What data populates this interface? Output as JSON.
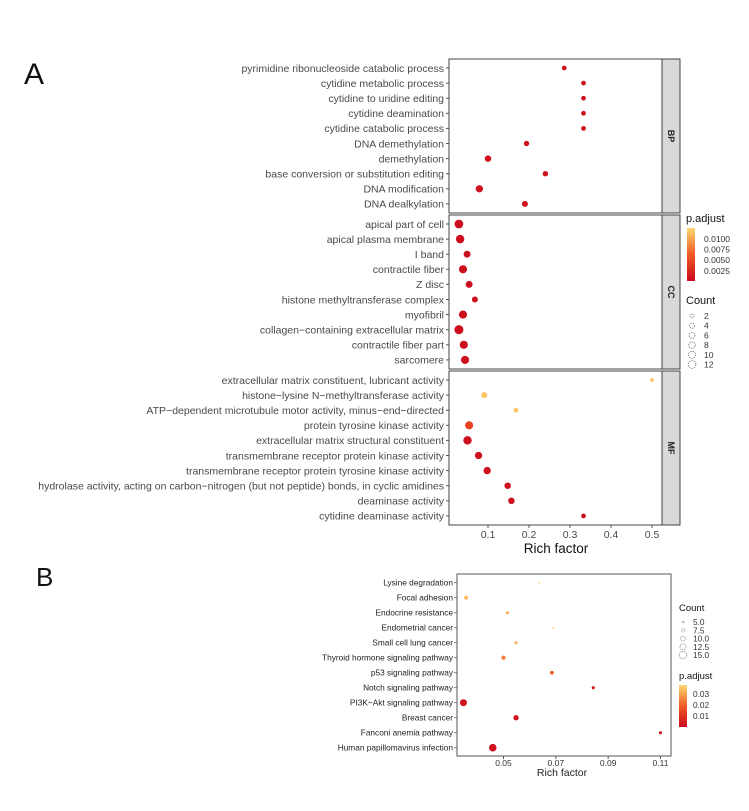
{
  "chart_data": [
    {
      "panel_label": "A",
      "type": "scatter",
      "subtype": "dot-plot (faceted)",
      "xlabel": "Rich factor",
      "ylabel": "",
      "xlim": [
        0.02,
        0.52
      ],
      "xticks": [
        "0.1",
        "0.2",
        "0.3",
        "0.4",
        "0.5"
      ],
      "grid": false,
      "facets": [
        {
          "name": "BP",
          "rows": [
            {
              "term": "pyrimidine ribonucleoside catabolic process",
              "rich_factor": 0.286,
              "count": 2,
              "p_adjust": 0.0008
            },
            {
              "term": "cytidine metabolic process",
              "rich_factor": 0.333,
              "count": 2,
              "p_adjust": 0.0008
            },
            {
              "term": "cytidine to uridine editing",
              "rich_factor": 0.333,
              "count": 2,
              "p_adjust": 0.0008
            },
            {
              "term": "cytidine deamination",
              "rich_factor": 0.333,
              "count": 2,
              "p_adjust": 0.0008
            },
            {
              "term": "cytidine catabolic process",
              "rich_factor": 0.333,
              "count": 2,
              "p_adjust": 0.0008
            },
            {
              "term": "DNA demethylation",
              "rich_factor": 0.194,
              "count": 3,
              "p_adjust": 0.0008
            },
            {
              "term": "demethylation",
              "rich_factor": 0.1,
              "count": 5,
              "p_adjust": 0.0008
            },
            {
              "term": "base conversion or substitution editing",
              "rich_factor": 0.24,
              "count": 3,
              "p_adjust": 0.0008
            },
            {
              "term": "DNA modification",
              "rich_factor": 0.079,
              "count": 7,
              "p_adjust": 0.0008
            },
            {
              "term": "DNA dealkylation",
              "rich_factor": 0.19,
              "count": 4,
              "p_adjust": 0.0008
            }
          ]
        },
        {
          "name": "CC",
          "rows": [
            {
              "term": "apical part of cell",
              "rich_factor": 0.029,
              "count": 11,
              "p_adjust": 0.0006
            },
            {
              "term": "apical plasma membrane",
              "rich_factor": 0.032,
              "count": 10,
              "p_adjust": 0.0006
            },
            {
              "term": "I band",
              "rich_factor": 0.049,
              "count": 6,
              "p_adjust": 0.0006
            },
            {
              "term": "contractile fiber",
              "rich_factor": 0.039,
              "count": 9,
              "p_adjust": 0.0006
            },
            {
              "term": "Z disc",
              "rich_factor": 0.054,
              "count": 6,
              "p_adjust": 0.0006
            },
            {
              "term": "histone methyltransferase complex",
              "rich_factor": 0.068,
              "count": 4,
              "p_adjust": 0.0006
            },
            {
              "term": "myofibril",
              "rich_factor": 0.039,
              "count": 9,
              "p_adjust": 0.0006
            },
            {
              "term": "collagen−containing extracellular matrix",
              "rich_factor": 0.029,
              "count": 12,
              "p_adjust": 0.0006
            },
            {
              "term": "contractile fiber part",
              "rich_factor": 0.041,
              "count": 9,
              "p_adjust": 0.0006
            },
            {
              "term": "sarcomere",
              "rich_factor": 0.044,
              "count": 9,
              "p_adjust": 0.0006
            }
          ]
        },
        {
          "name": "MF",
          "rows": [
            {
              "term": "extracellular matrix constituent, lubricant activity",
              "rich_factor": 0.5,
              "count": 1,
              "p_adjust": 0.0108
            },
            {
              "term": "histone−lysine N−methyltransferase activity",
              "rich_factor": 0.091,
              "count": 4,
              "p_adjust": 0.0105
            },
            {
              "term": "ATP−dependent microtubule motor activity, minus−end−directed",
              "rich_factor": 0.168,
              "count": 2,
              "p_adjust": 0.0105
            },
            {
              "term": "protein tyrosine kinase activity",
              "rich_factor": 0.054,
              "count": 9,
              "p_adjust": 0.0042
            },
            {
              "term": "extracellular matrix structural constituent",
              "rich_factor": 0.05,
              "count": 10,
              "p_adjust": 0.0008
            },
            {
              "term": "transmembrane receptor protein kinase activity",
              "rich_factor": 0.077,
              "count": 7,
              "p_adjust": 0.0008
            },
            {
              "term": "transmembrane receptor protein tyrosine kinase activity",
              "rich_factor": 0.098,
              "count": 7,
              "p_adjust": 0.0008
            },
            {
              "term": "hydrolase activity, acting on carbon−nitrogen (but not peptide) bonds, in cyclic amidines",
              "rich_factor": 0.148,
              "count": 5,
              "p_adjust": 0.0008
            },
            {
              "term": "deaminase activity",
              "rich_factor": 0.157,
              "count": 5,
              "p_adjust": 0.0008
            },
            {
              "term": "cytidine deaminase activity",
              "rich_factor": 0.333,
              "count": 2,
              "p_adjust": 0.0008
            }
          ]
        }
      ],
      "legend": {
        "placement": "right",
        "color_title": "p.adjust",
        "color_ticks": [
          "0.0100",
          "0.0075",
          "0.0050",
          "0.0025"
        ],
        "color_range": [
          0.0003,
          0.0115
        ],
        "color_low": "#CB0A1E",
        "color_mid": "#F05A24",
        "color_high": "#FDD871",
        "size_title": "Count",
        "size_ticks": [
          "2",
          "4",
          "6",
          "8",
          "10",
          "12"
        ]
      }
    },
    {
      "panel_label": "B",
      "type": "scatter",
      "subtype": "dot-plot",
      "xlabel": "Rich factor",
      "ylabel": "",
      "xlim": [
        0.031,
        0.114
      ],
      "xticks": [
        "0.05",
        "0.07",
        "0.09",
        "0.11"
      ],
      "grid": false,
      "rows": [
        {
          "term": "Lysine degradation",
          "rich_factor": 0.0637,
          "count": 4,
          "p_adjust": 0.035
        },
        {
          "term": "Focal adhesion",
          "rich_factor": 0.0357,
          "count": 9,
          "p_adjust": 0.033
        },
        {
          "term": "Endocrine resistance",
          "rich_factor": 0.0515,
          "count": 7,
          "p_adjust": 0.031
        },
        {
          "term": "Endometrial cancer",
          "rich_factor": 0.069,
          "count": 4,
          "p_adjust": 0.034
        },
        {
          "term": "Small cell lung cancer",
          "rich_factor": 0.0548,
          "count": 7,
          "p_adjust": 0.031
        },
        {
          "term": "Thyroid hormone signaling pathway",
          "rich_factor": 0.05,
          "count": 9,
          "p_adjust": 0.024
        },
        {
          "term": "p53 signaling pathway",
          "rich_factor": 0.0685,
          "count": 8,
          "p_adjust": 0.018
        },
        {
          "term": "Notch signaling pathway",
          "rich_factor": 0.0843,
          "count": 7,
          "p_adjust": 0.005
        },
        {
          "term": "PI3K−Akt signaling pathway",
          "rich_factor": 0.0347,
          "count": 14,
          "p_adjust": 0.004
        },
        {
          "term": "Breast cancer",
          "rich_factor": 0.0548,
          "count": 11,
          "p_adjust": 0.004
        },
        {
          "term": "Fanconi anemia pathway",
          "rich_factor": 0.11,
          "count": 7,
          "p_adjust": 0.005
        },
        {
          "term": "Human papillomavirus infection",
          "rich_factor": 0.0459,
          "count": 15,
          "p_adjust": 0.003
        }
      ],
      "legend": {
        "placement": "right",
        "size_title": "Count",
        "size_ticks": [
          "5.0",
          "7.5",
          "10.0",
          "12.5",
          "15.0"
        ],
        "color_title": "p.adjust",
        "color_ticks": [
          "0.03",
          "0.02",
          "0.01"
        ],
        "color_range": [
          0.002,
          0.037
        ],
        "color_low": "#CB0A1E",
        "color_mid": "#F05A24",
        "color_high": "#FDD871"
      }
    }
  ]
}
